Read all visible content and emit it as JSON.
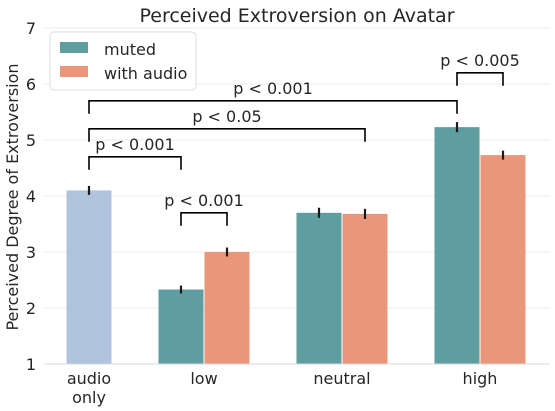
{
  "chart_data": {
    "type": "bar",
    "title": "Perceived Extroversion on Avatar",
    "ylabel": "Perceived Degree of Extroversion",
    "xlabel": "",
    "ylim": [
      1,
      7
    ],
    "yticks": [
      1,
      2,
      3,
      4,
      5,
      6,
      7
    ],
    "grid": "horizontal",
    "legend_placement": "top-left",
    "categories": [
      "audio\nonly",
      "low",
      "neutral",
      "high"
    ],
    "series": [
      {
        "name": "muted",
        "color": "#5f9ea0",
        "values": [
          null,
          2.33,
          3.7,
          5.23
        ],
        "errors": [
          null,
          0.07,
          0.09,
          0.09
        ]
      },
      {
        "name": "with audio",
        "color": "#e9967a",
        "values": [
          null,
          3.0,
          3.68,
          4.73
        ],
        "errors": [
          null,
          0.08,
          0.09,
          0.08
        ]
      }
    ],
    "single_bars": [
      {
        "category": "audio\nonly",
        "value": 4.1,
        "error": 0.08,
        "color": "#b0c4de"
      }
    ],
    "annotations": [
      {
        "text": "p < 0.001",
        "from": "audio-only",
        "to": "low-muted",
        "y": 4.7
      },
      {
        "text": "p < 0.001",
        "from": "low-muted",
        "to": "low-audio",
        "y": 3.7
      },
      {
        "text": "p < 0.05",
        "from": "audio-only",
        "to": "neutral-audio",
        "y": 5.2
      },
      {
        "text": "p < 0.001",
        "from": "audio-only",
        "to": "high-muted",
        "y": 5.7
      },
      {
        "text": "p < 0.005",
        "from": "high-muted",
        "to": "high-audio",
        "y": 6.2
      }
    ]
  }
}
